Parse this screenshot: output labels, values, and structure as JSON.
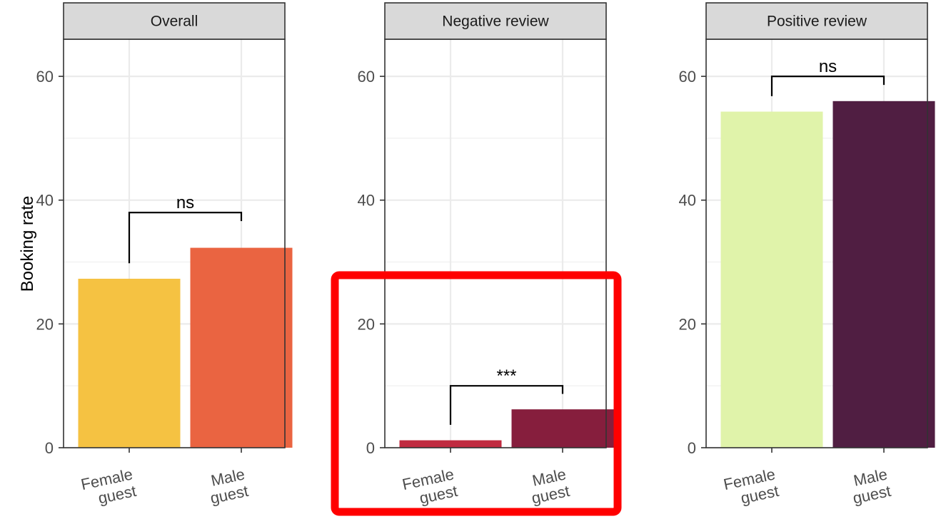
{
  "chart_data": {
    "type": "bar",
    "ylabel": "Booking rate",
    "ylim": [
      0,
      66
    ],
    "yticks": [
      0,
      20,
      40,
      60
    ],
    "grid": true,
    "legend": "none",
    "categories": [
      "Female\nguest",
      "Male\nguest"
    ],
    "facets": [
      {
        "title": "Overall",
        "values": [
          27.3,
          32.3
        ],
        "colors": [
          "#F5C242",
          "#EA6441"
        ],
        "comparison": {
          "label": "ns",
          "bracket_y": 38
        }
      },
      {
        "title": "Negative review",
        "values": [
          1.2,
          6.2
        ],
        "colors": [
          "#C02B40",
          "#861E3D"
        ],
        "comparison": {
          "label": "***",
          "bracket_y": 10
        }
      },
      {
        "title": "Positive review",
        "values": [
          54.3,
          56.0
        ],
        "colors": [
          "#E0F3AA",
          "#501E42"
        ],
        "comparison": {
          "label": "ns",
          "bracket_y": 60
        }
      }
    ]
  },
  "highlight": {
    "target": "Negative review",
    "color": "#FF0000"
  }
}
